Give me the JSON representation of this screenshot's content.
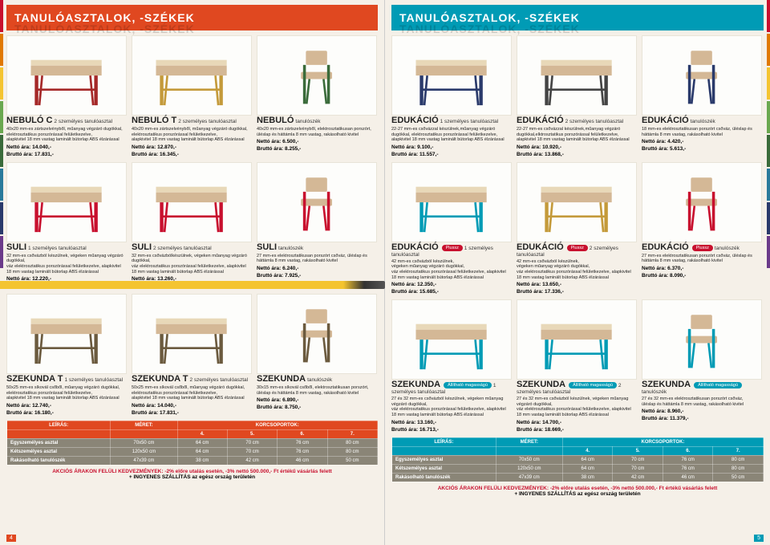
{
  "header": {
    "title_left": "TANULÓASZTALOK, -SZÉKEK",
    "title_right": "TANULÓASZTALOK, -SZÉKEK"
  },
  "left_page": {
    "rows": [
      [
        {
          "title_main": "NEBULÓ C",
          "title_sub": "2 személyes tanulóasztal",
          "desc": "40x20 mm-es zártszelvényből, műanyag végzáró dugókkal, elektrosztatikus porszórással felületkezelve,\nalapkivitel 18 mm vastag laminált bútorlap ABS élzárással",
          "netto": "Nettó ára: 14.040,-",
          "brutto": "Bruttó ára: 17.831,-",
          "color": "#a52828"
        },
        {
          "title_main": "NEBULÓ T",
          "title_sub": "2 személyes tanulóasztal",
          "desc": "40x20 mm-es zártszelvényből, műanyag végzáró dugókkal, elektrosztatikus porszórással felületkezelve,\nalapkivitel 18 mm vastag laminált bútorlap ABS élzárással",
          "netto": "Nettó ára: 12.870,-",
          "brutto": "Bruttó ára: 16.345,-",
          "color": "#c49a3a"
        },
        {
          "title_main": "NEBULÓ",
          "title_sub": "tanulószék",
          "desc": "40x20 mm-es zártszelvényből, elektrosztatikusan porszórt,\nüléslap és háttámla 8 mm vastag, rakásolható kivitel",
          "netto": "Nettó ára: 6.500,-",
          "brutto": "Bruttó ára: 8.255,-",
          "color": "#3a6b3a",
          "chair": true
        }
      ],
      [
        {
          "title_main": "SULI",
          "title_sub": "1 személyes tanulóasztal",
          "desc": "32 mm-es csővázból készülnek, végeken műanyag végzáró dugókkal,\nváz elektrosztatikus porszórással felületkezelve, alapkivitel 18 mm vastag laminált bútorlap ABS élzárással",
          "netto": "Nettó ára: 12.220,-",
          "brutto": "Bruttó ára: 15.519,-",
          "color": "#c8102e"
        },
        {
          "title_main": "SULI",
          "title_sub": "2 személyes tanulóasztal",
          "desc": "32 mm-es csővázbólkészülnek, végeken műanyag végzáró dugókkal,\nváz elektrosztatikus porszórással felületkezelve, alapkivitel 18 mm vastag laminált bútorlap ABS élzárással",
          "netto": "Nettó ára: 13.260,-",
          "brutto": "Bruttó ára: 16.840,-",
          "color": "#c8102e"
        },
        {
          "title_main": "SULI",
          "title_sub": "tanulószék",
          "desc": "27 mm-es elektrosztatikusan porszórt csőváz, üléslap és háttámla 8 mm vastag, rakásolható kivitel",
          "netto": "Nettó ára: 6.240,-",
          "brutto": "Bruttó ára: 7.925,-",
          "color": "#c8102e",
          "chair": true
        }
      ],
      [
        {
          "title_main": "SZEKUNDA T",
          "title_sub": "1 személyes tanulóasztal",
          "desc": "50x25 mm-es síkovál csőből, műanyag végzáró dugókkal, elektrosztatikus porszórással felületkezelve,\nalapkivitel 18 mm vastag laminált bútorlap ABS élzárással",
          "netto": "Nettó ára: 12.740,-",
          "brutto": "Bruttó ára: 16.180,-",
          "color": "#6b5a3e"
        },
        {
          "title_main": "SZEKUNDA T",
          "title_sub": "2 személyes tanulóasztal",
          "desc": "50x25 mm-es síkovál csőből, műanyag végzáró dugókkal, elektrosztatikus porszórással felületkezelve,\nalapkivitel 18 mm vastag laminált bútorlap ABS élzárással",
          "netto": "Nettó ára: 14.040,-",
          "brutto": "Bruttó ára: 17.831,-",
          "color": "#6b5a3e"
        },
        {
          "title_main": "SZEKUNDA",
          "title_sub": "tanulószék",
          "desc": "30x15 mm-es síkovál csőből, elektrosztatikusan porszórt,\nüléslap és háttámla 8 mm vastag, rakásolható kivitel",
          "netto": "Nettó ára: 6.890,-",
          "brutto": "Bruttó ára: 8.750,-",
          "color": "#6b5a3e",
          "chair": true
        }
      ]
    ],
    "table": {
      "heads": [
        "LEÍRÁS:",
        "MÉRET:",
        "KORCSOPORTOK:"
      ],
      "subheads": [
        "",
        "",
        "4.",
        "5.",
        "6.",
        "7."
      ],
      "rows": [
        [
          "Egyszemélyes asztal",
          "70x50 cm",
          "64 cm",
          "70 cm",
          "76 cm",
          "80 cm"
        ],
        [
          "Kétszemélyes asztal",
          "120x50 cm",
          "64 cm",
          "70 cm",
          "76 cm",
          "80 cm"
        ],
        [
          "Rakásolható tanulószék",
          "47x39 cm",
          "38 cm",
          "42 cm",
          "46 cm",
          "50 cm"
        ]
      ]
    },
    "promo_line1": "AKCIÓS ÁRAKON FELÜLI KEDVEZMÉNYEK: -2% előre utalás esetén, -3% nettó 500.000,- Ft értékű vásárlás felett",
    "promo_line2": "+ INGYENES SZÁLLÍTÁS az egész ország területén",
    "page_num": "4"
  },
  "right_page": {
    "rows": [
      [
        {
          "title_main": "EDUKÁCIÓ",
          "title_sub": "1 személyes tanulóasztal",
          "desc": "22-27 mm-es csővázzal készülnek,műanyag végzáró dugókkal, elektrosztatikus porszórással felületkezelve,\nalapkivitel 18 mm vastag laminált bútorlap ABS élzárással",
          "netto": "Nettó ára: 9.100,-",
          "brutto": "Bruttó ára: 11.557,-",
          "color": "#2a3a6b"
        },
        {
          "title_main": "EDUKÁCIÓ",
          "title_sub": "2 személyes tanulóasztal",
          "desc": "22-27 mm-es csővázzal készülnek,műanyag végzáró dugókkal,elktrosztatikus porszórással felületkezelve,\nalapkivitel 18 mm vastag laminált bútorlap ABS élzárással",
          "netto": "Nettó ára: 10.920,-",
          "brutto": "Bruttó ára: 13.868,-",
          "color": "#444"
        },
        {
          "title_main": "EDUKÁCIÓ",
          "title_sub": "tanulószék",
          "desc": "18 mm-es elektrosztatikusan porszórt csőváz, üléslap és háttámla 8 mm vastag, rakásolható kivitel",
          "netto": "Nettó ára: 4.420,-",
          "brutto": "Bruttó ára: 5.613,-",
          "color": "#2a3a6b",
          "chair": true
        }
      ],
      [
        {
          "title_main": "EDUKÁCIÓ",
          "title_sub": "1 személyes tanulóasztal",
          "badge": "Plussz",
          "badge_cls": "badge-red",
          "desc": "42 mm-es csővázból készülnek,\nvégeken műanyag végzáró dugókkal,\nváz elektrosztatikus porszórással felületkezelve, alapkivitel 18 mm vastag laminált bútorlap ABS élzárással",
          "netto": "Nettó ára: 12.350,-",
          "brutto": "Bruttó ára: 15.685,-",
          "color": "#009bb5"
        },
        {
          "title_main": "EDUKÁCIÓ",
          "title_sub": "2 személyes tanulóasztal",
          "badge": "Plussz",
          "badge_cls": "badge-red",
          "desc": "42 mm-es csővázból készülnek,\nvégeken műanyag végzáró dugókkal,\nváz elektrosztatikus porszórással felületkezelve, alapkivitel 18 mm vastag laminált bútorlap ABS élzárással",
          "netto": "Nettó ára: 13.650,-",
          "brutto": "Bruttó ára: 17.336,-",
          "color": "#c49a3a"
        },
        {
          "title_main": "EDUKÁCIÓ",
          "title_sub": "tanulószék",
          "badge": "Plussz",
          "badge_cls": "badge-red",
          "desc": "27 mm-es elektrosztatikusan porszórt csőváz, üléslap és háttámla 8 mm vastag, rakásolható kivitel",
          "netto": "Nettó ára: 6.370,-",
          "brutto": "Bruttó ára: 8.090,-",
          "color": "#c8102e",
          "chair": true
        }
      ],
      [
        {
          "title_main": "SZEKUNDA",
          "title_sub": "1 személyes tanulóasztal",
          "badge": "Állítható magasságú",
          "badge_cls": "badge-teal",
          "desc": "27 és 32 mm-es csővázból készülnek, végeken műanyag végzáró dugókkal,\nváz elektrosztatikus porszórással felületkezelve, alapkivitel 18 mm vastag laminált bútorlap ABS élzárással",
          "netto": "Nettó ára: 13.160,-",
          "brutto": "Bruttó ára: 16.713,-",
          "color": "#009bb5"
        },
        {
          "title_main": "SZEKUNDA",
          "title_sub": "2 személyes tanulóasztal",
          "badge": "Állítható magasságú",
          "badge_cls": "badge-teal",
          "desc": "27 és 32 mm-es csővázból készülnek, végeken műanyag végzáró dugókkal,\nváz elektrosztatikus porszórással felületkezelve, alapkivitel 18 mm vastag laminált bútorlap ABS élzárással",
          "netto": "Nettó ára: 14.700,-",
          "brutto": "Bruttó ára: 18.669,-",
          "color": "#009bb5"
        },
        {
          "title_main": "SZEKUNDA",
          "title_sub": "tanulószék",
          "badge": "Állítható magasságú",
          "badge_cls": "badge-teal",
          "desc": "27 és 32 mm-es elektrosztatikusan porszórt csőváz,\nüléslap és háttámla 8 mm vastag, rakásolható kivitel",
          "netto": "Nettó ára: 8.960,-",
          "brutto": "Bruttó ára: 11.379,-",
          "color": "#009bb5",
          "chair": true
        }
      ]
    ],
    "table": {
      "heads": [
        "LEÍRÁS:",
        "MÉRET:",
        "KORCSOPORTOK:"
      ],
      "subheads": [
        "",
        "",
        "4.",
        "5.",
        "6.",
        "7."
      ],
      "rows": [
        [
          "Egyszemélyes asztal",
          "70x50 cm",
          "64 cm",
          "70 cm",
          "76 cm",
          "80 cm"
        ],
        [
          "Kétszemélyes asztal",
          "120x50 cm",
          "64 cm",
          "70 cm",
          "76 cm",
          "80 cm"
        ],
        [
          "Rakásolható tanulószék",
          "47x39 cm",
          "38 cm",
          "42 cm",
          "46 cm",
          "50 cm"
        ]
      ]
    },
    "promo_line1": "AKCIÓS ÁRAKON FELÜLI KEDVEZMÉNYEK: -2% előre utalás esetén, -3% nettó 500.000,- Ft értékű vásárlás felett",
    "promo_line2": "+ INGYENES SZÁLLÍTÁS az egész ország területén",
    "page_num": "5"
  },
  "tab_colors_left": [
    "#c8102e",
    "#e07800",
    "#f4c430",
    "#6aa84f",
    "#3a6b3a",
    "#2a7a9b",
    "#2a3a6b",
    "#6b3a8a"
  ],
  "tab_colors_right": [
    "#c8102e",
    "#e07800",
    "#f4c430",
    "#6aa84f",
    "#3a6b3a",
    "#2a7a9b",
    "#2a3a6b",
    "#6b3a8a"
  ]
}
